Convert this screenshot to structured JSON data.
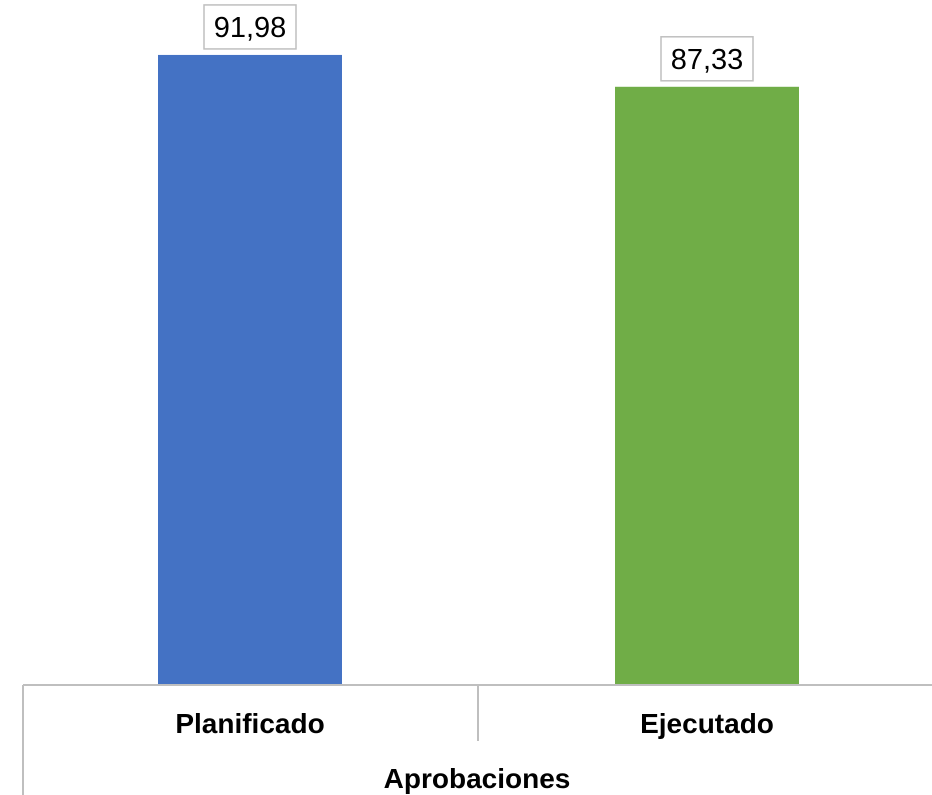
{
  "chart_data": {
    "type": "bar",
    "categories": [
      "Planificado",
      "Ejecutado"
    ],
    "values": [
      91.98,
      87.33
    ],
    "value_labels": [
      "91,98",
      "87,33"
    ],
    "colors": [
      "#4472C4",
      "#70AD47"
    ],
    "group_label": "Aprobaciones",
    "title": "",
    "xlabel": "",
    "ylabel": "",
    "ylim": [
      0,
      100
    ],
    "grid": false,
    "legend": "none"
  }
}
